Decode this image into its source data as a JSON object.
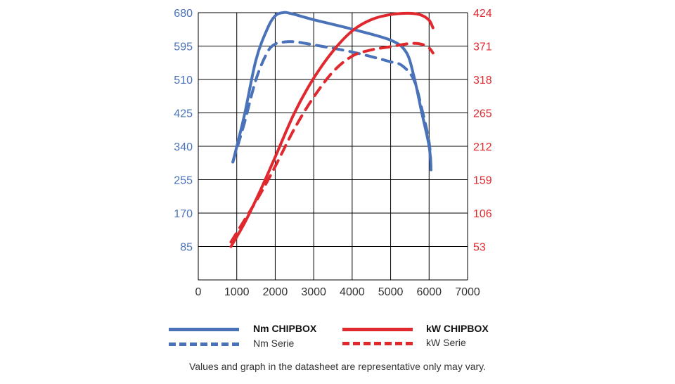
{
  "chart_data": {
    "type": "line",
    "title": "",
    "xlabel": "",
    "ylabel": "",
    "y2label": "",
    "xlim": [
      0,
      7000
    ],
    "ylim": [
      0,
      680
    ],
    "y2lim": [
      0,
      424
    ],
    "x_ticks": [
      "0",
      "1000",
      "2000",
      "3000",
      "4000",
      "5000",
      "6000",
      "7000"
    ],
    "y_ticks": [
      "85",
      "170",
      "255",
      "340",
      "425",
      "510",
      "595",
      "680"
    ],
    "y2_ticks": [
      "53",
      "106",
      "159",
      "212",
      "265",
      "318",
      "371",
      "424"
    ],
    "grid": true,
    "series": [
      {
        "name": "Nm CHIPBOX",
        "axis": "left",
        "style": "solid",
        "color": "#4a72b8",
        "x": [
          900,
          1200,
          1500,
          1800,
          2000,
          2200,
          2400,
          3000,
          4000,
          5000,
          5400,
          5600,
          5800,
          6000,
          6050
        ],
        "y": [
          300,
          420,
          560,
          640,
          672,
          680,
          678,
          662,
          638,
          610,
          580,
          520,
          430,
          340,
          280
        ]
      },
      {
        "name": "Nm Serie",
        "axis": "left",
        "style": "dashed",
        "color": "#4a72b8",
        "x": [
          900,
          1200,
          1500,
          1800,
          2000,
          2200,
          2500,
          3000,
          4000,
          5000,
          5300,
          5600,
          5800,
          6000,
          6050
        ],
        "y": [
          300,
          400,
          510,
          580,
          600,
          605,
          606,
          598,
          580,
          555,
          545,
          510,
          440,
          350,
          280
        ]
      },
      {
        "name": "kW CHIPBOX",
        "axis": "right",
        "style": "solid",
        "color": "#e0292f",
        "x": [
          850,
          1200,
          1600,
          2000,
          2500,
          3000,
          3500,
          4000,
          4500,
          5000,
          5500,
          5800,
          6000,
          6100
        ],
        "y": [
          53,
          90,
          140,
          195,
          265,
          320,
          363,
          395,
          413,
          421,
          423,
          420,
          412,
          400
        ]
      },
      {
        "name": "kW Serie",
        "axis": "right",
        "style": "dashed",
        "color": "#e0292f",
        "x": [
          850,
          1200,
          1600,
          2000,
          2500,
          3000,
          3500,
          4000,
          4500,
          5000,
          5500,
          5800,
          6000,
          6100
        ],
        "y": [
          60,
          95,
          135,
          180,
          240,
          290,
          330,
          355,
          365,
          370,
          375,
          374,
          368,
          360
        ]
      }
    ],
    "legend": [
      {
        "name": "Nm CHIPBOX",
        "bold": true
      },
      {
        "name": "Nm Serie",
        "bold": false
      },
      {
        "name": "kW CHIPBOX",
        "bold": true
      },
      {
        "name": "kW Serie",
        "bold": false
      }
    ],
    "legend_position": "bottom"
  },
  "footnote": "Values and graph in the datasheet are representative only may vary.",
  "colors": {
    "left_axis": "#4a72b8",
    "right_axis": "#e0292f",
    "grid": "#000000"
  }
}
